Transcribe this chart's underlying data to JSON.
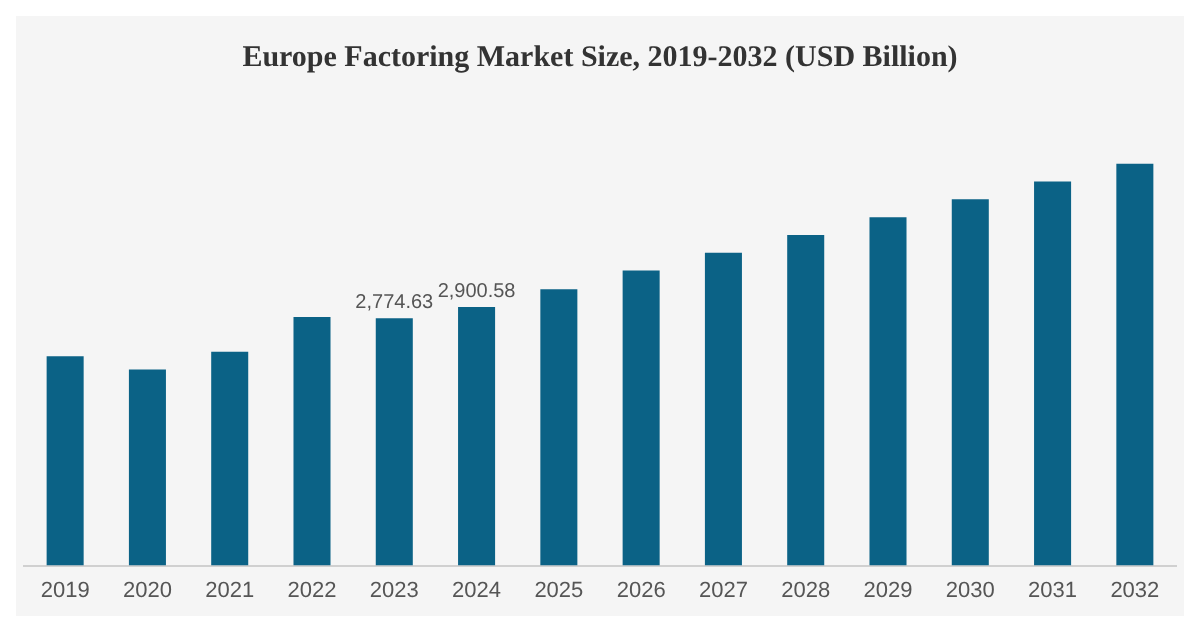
{
  "chart_data": {
    "type": "bar",
    "title": "Europe Factoring Market Size, 2019-2032 (USD Billion)",
    "categories": [
      "2019",
      "2020",
      "2021",
      "2022",
      "2023",
      "2024",
      "2025",
      "2026",
      "2027",
      "2028",
      "2029",
      "2030",
      "2031",
      "2032"
    ],
    "values": [
      2350,
      2200,
      2400,
      2790,
      2774.63,
      2900.58,
      3100,
      3310,
      3510,
      3710,
      3910,
      4110,
      4310,
      4510
    ],
    "value_labels": [
      null,
      null,
      null,
      null,
      "2,774.63",
      "2,900.58",
      null,
      null,
      null,
      null,
      null,
      null,
      null,
      null
    ],
    "color": "#0b6286",
    "grid": false,
    "legend": false
  }
}
